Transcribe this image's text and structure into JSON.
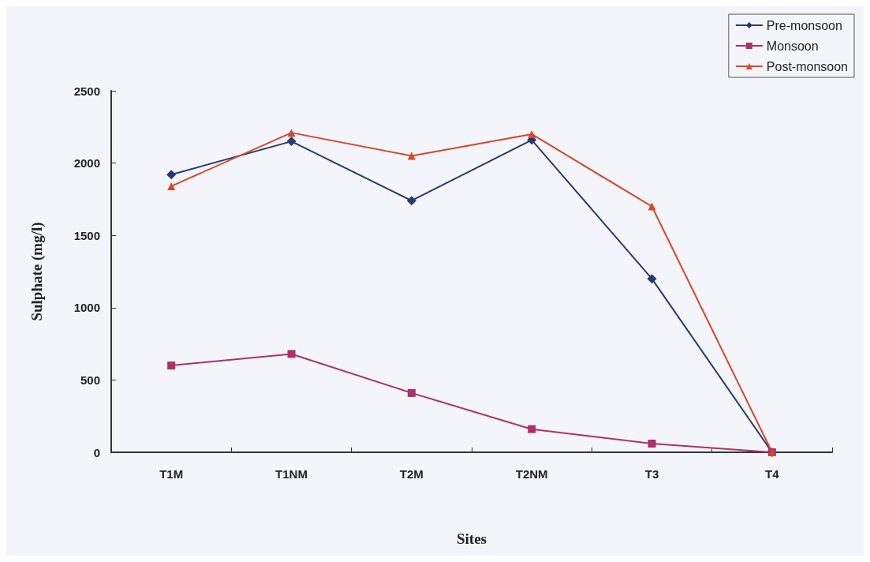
{
  "chart_data": {
    "type": "line",
    "xlabel": "Sites",
    "ylabel": "Sulphate (mg/l)",
    "categories": [
      "T1M",
      "T1NM",
      "T2M",
      "T2NM",
      "T3",
      "T4"
    ],
    "series": [
      {
        "name": "Pre-monsoon",
        "color": "#253b6e",
        "marker": "diamond",
        "values": [
          1920,
          2150,
          1740,
          2160,
          1200,
          0
        ]
      },
      {
        "name": "Monsoon",
        "color": "#b0306a",
        "marker": "square",
        "values": [
          600,
          680,
          410,
          160,
          60,
          0
        ]
      },
      {
        "name": "Post-monsoon",
        "color": "#d9472b",
        "marker": "triangle",
        "values": [
          1840,
          2210,
          2050,
          2200,
          1700,
          0
        ]
      }
    ],
    "ylim": [
      0,
      2500
    ],
    "yticks": [
      0,
      500,
      1000,
      1500,
      2000,
      2500
    ],
    "grid": false,
    "legend": "top right"
  }
}
